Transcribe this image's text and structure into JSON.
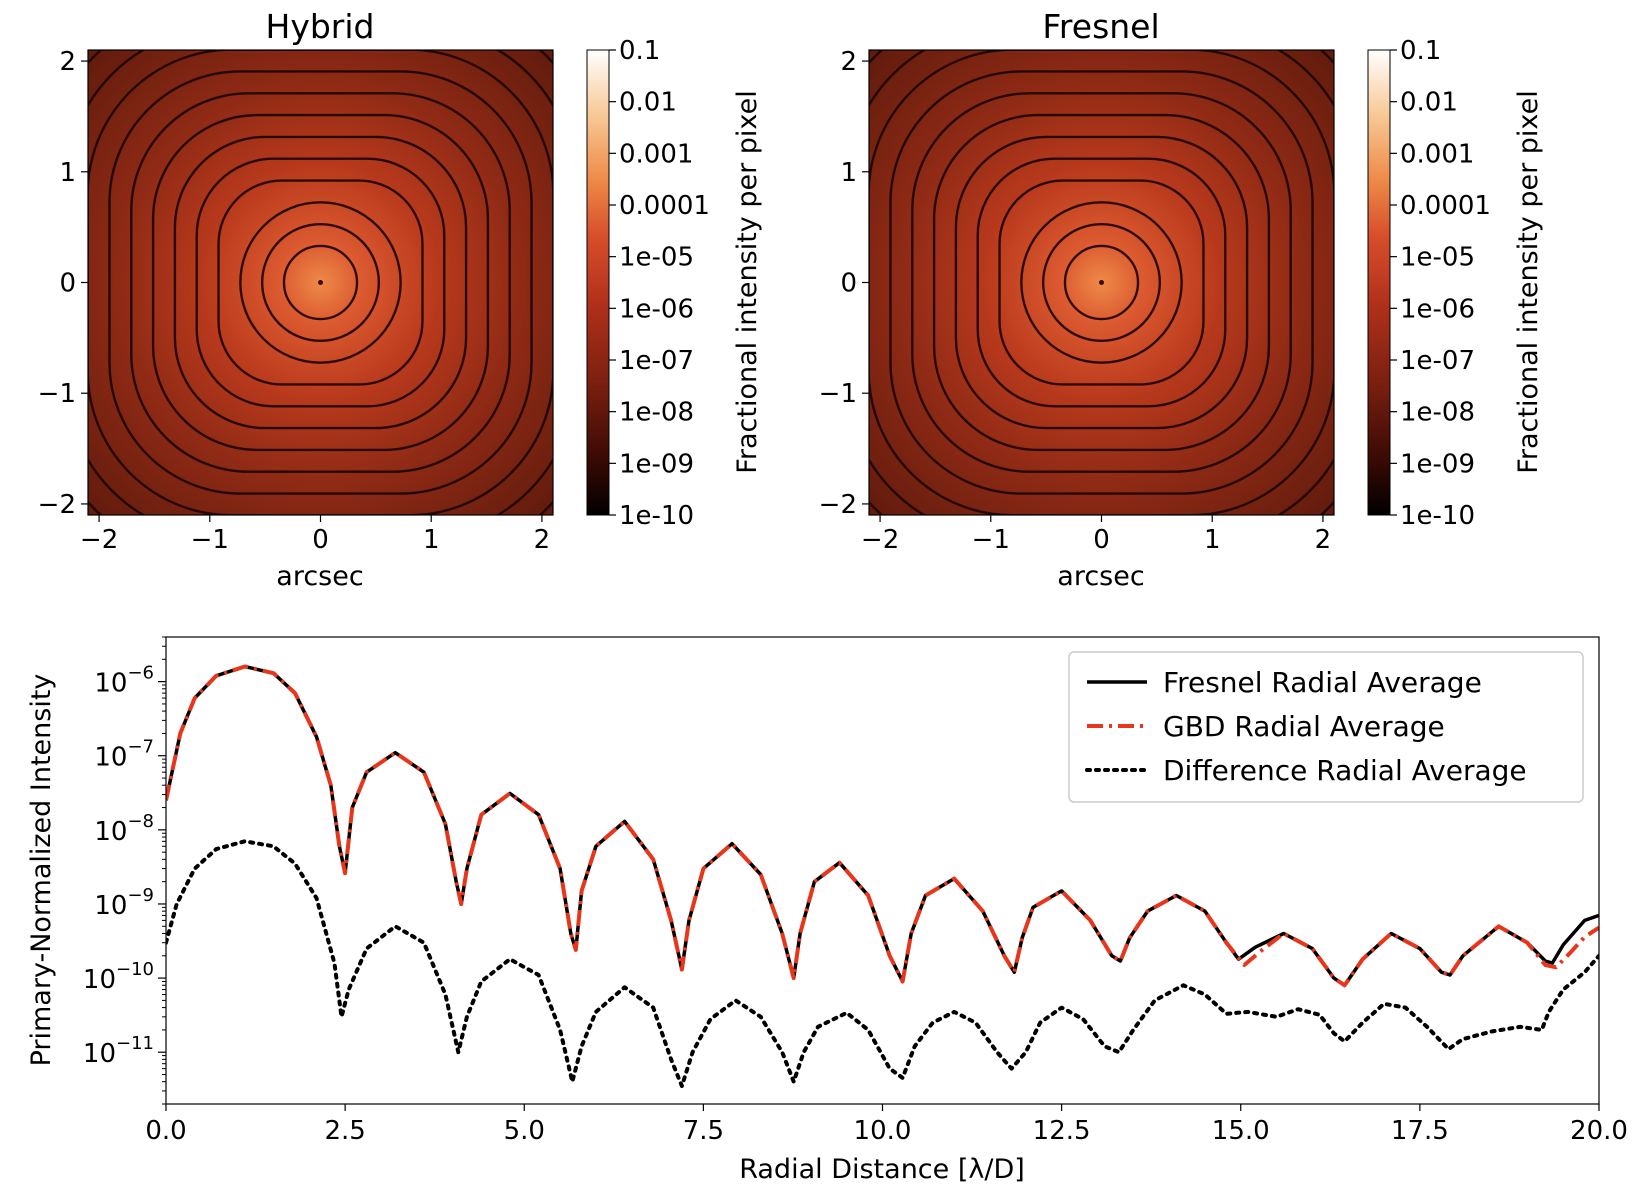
{
  "chart_data": [
    {
      "type": "heatmap",
      "title": "Hybrid",
      "xlabel": "arcsec",
      "ylabel": "",
      "xlim": [
        -2.1,
        2.1
      ],
      "ylim": [
        -2.1,
        2.1
      ],
      "xticks": [
        {
          "v": -2,
          "label": "−2"
        },
        {
          "v": -1,
          "label": "−1"
        },
        {
          "v": 0,
          "label": "0"
        },
        {
          "v": 1,
          "label": "1"
        },
        {
          "v": 2,
          "label": "2"
        }
      ],
      "yticks": [
        {
          "v": -2,
          "label": "−2"
        },
        {
          "v": -1,
          "label": "−1"
        },
        {
          "v": 0,
          "label": "0"
        },
        {
          "v": 1,
          "label": "1"
        },
        {
          "v": 2,
          "label": "2"
        }
      ],
      "colorbar": {
        "label": "Fractional intensity per pixel",
        "scale": "log",
        "range": [
          1e-10,
          0.1
        ],
        "ticks": [
          "0.1",
          "0.01",
          "0.001",
          "0.0001",
          "1e-05",
          "1e-06",
          "1e-07",
          "1e-08",
          "1e-09",
          "1e-10"
        ],
        "colors": [
          "#000000",
          "#3a0a04",
          "#7a1f10",
          "#b0301a",
          "#d84e2c",
          "#ee8a48",
          "#f8c896",
          "#ffffff"
        ]
      }
    },
    {
      "type": "heatmap",
      "title": "Fresnel",
      "xlabel": "arcsec",
      "ylabel": "",
      "xlim": [
        -2.1,
        2.1
      ],
      "ylim": [
        -2.1,
        2.1
      ],
      "xticks": [
        {
          "v": -2,
          "label": "−2"
        },
        {
          "v": -1,
          "label": "−1"
        },
        {
          "v": 0,
          "label": "0"
        },
        {
          "v": 1,
          "label": "1"
        },
        {
          "v": 2,
          "label": "2"
        }
      ],
      "yticks": [
        {
          "v": -2,
          "label": "−2"
        },
        {
          "v": -1,
          "label": "−1"
        },
        {
          "v": 0,
          "label": "0"
        },
        {
          "v": 1,
          "label": "1"
        },
        {
          "v": 2,
          "label": "2"
        }
      ],
      "colorbar": {
        "label": "Fractional intensity per pixel",
        "scale": "log",
        "range": [
          1e-10,
          0.1
        ],
        "ticks": [
          "0.1",
          "0.01",
          "0.001",
          "0.0001",
          "1e-05",
          "1e-06",
          "1e-07",
          "1e-08",
          "1e-09",
          "1e-10"
        ],
        "colors": [
          "#000000",
          "#3a0a04",
          "#7a1f10",
          "#b0301a",
          "#d84e2c",
          "#ee8a48",
          "#f8c896",
          "#ffffff"
        ]
      }
    },
    {
      "type": "line",
      "title": "",
      "xlabel": "Radial Distance [λ/D]",
      "ylabel": "Primary-Normalized Intensity",
      "xlim": [
        0,
        20
      ],
      "ylim": [
        2e-12,
        4e-06
      ],
      "yscale": "log",
      "grid": false,
      "legend_position": "top-right",
      "xticks": [
        {
          "v": 0,
          "label": "0.0"
        },
        {
          "v": 2.5,
          "label": "2.5"
        },
        {
          "v": 5,
          "label": "5.0"
        },
        {
          "v": 7.5,
          "label": "7.5"
        },
        {
          "v": 10,
          "label": "10.0"
        },
        {
          "v": 12.5,
          "label": "12.5"
        },
        {
          "v": 15,
          "label": "15.0"
        },
        {
          "v": 17.5,
          "label": "17.5"
        },
        {
          "v": 20,
          "label": "20.0"
        }
      ],
      "yticks": [
        {
          "v": 1e-06,
          "base": "10",
          "exp": "−6"
        },
        {
          "v": 1e-07,
          "base": "10",
          "exp": "−7"
        },
        {
          "v": 1e-08,
          "base": "10",
          "exp": "−8"
        },
        {
          "v": 1e-09,
          "base": "10",
          "exp": "−9"
        },
        {
          "v": 1e-10,
          "base": "10",
          "exp": "−10"
        },
        {
          "v": 1e-11,
          "base": "10",
          "exp": "−11"
        }
      ],
      "series": [
        {
          "name": "Fresnel Radial Average",
          "color": "#000000",
          "style": "solid",
          "x": [
            0.0,
            0.2,
            0.4,
            0.7,
            1.1,
            1.5,
            1.8,
            2.1,
            2.3,
            2.42,
            2.5,
            2.6,
            2.8,
            3.2,
            3.6,
            3.9,
            4.05,
            4.12,
            4.2,
            4.4,
            4.8,
            5.2,
            5.5,
            5.65,
            5.72,
            5.8,
            6.0,
            6.4,
            6.8,
            7.05,
            7.2,
            7.3,
            7.5,
            7.9,
            8.3,
            8.6,
            8.76,
            8.85,
            9.05,
            9.4,
            9.8,
            10.1,
            10.28,
            10.4,
            10.6,
            11.0,
            11.4,
            11.7,
            11.84,
            11.95,
            12.1,
            12.5,
            12.9,
            13.2,
            13.32,
            13.45,
            13.7,
            14.1,
            14.5,
            14.8,
            14.97,
            15.2,
            15.6,
            16.0,
            16.3,
            16.45,
            16.7,
            17.1,
            17.5,
            17.8,
            17.92,
            18.1,
            18.6,
            19.0,
            19.25,
            19.35,
            19.5,
            19.8,
            20.0
          ],
          "y": [
            2.5e-08,
            2e-07,
            6e-07,
            1.2e-06,
            1.6e-06,
            1.3e-06,
            7e-07,
            1.8e-07,
            4e-08,
            6e-09,
            2.6e-09,
            2e-08,
            6e-08,
            1.1e-07,
            6e-08,
            1.2e-08,
            2e-09,
            1e-09,
            3e-09,
            1.6e-08,
            3.1e-08,
            1.6e-08,
            3e-09,
            4e-10,
            2.4e-10,
            1.5e-09,
            6e-09,
            1.3e-08,
            4e-09,
            6e-10,
            1.3e-10,
            6e-10,
            3e-09,
            6.5e-09,
            2.5e-09,
            4e-10,
            1e-10,
            4e-10,
            2e-09,
            3.6e-09,
            1.3e-09,
            2e-10,
            9e-11,
            4e-10,
            1.3e-09,
            2.2e-09,
            8e-10,
            2e-10,
            1.2e-10,
            3.5e-10,
            9e-10,
            1.5e-09,
            6e-10,
            2e-10,
            1.7e-10,
            3.5e-10,
            8e-10,
            1.3e-09,
            8e-10,
            3e-10,
            1.8e-10,
            2.6e-10,
            4e-10,
            2.5e-10,
            1e-10,
            8e-11,
            1.8e-10,
            4e-10,
            2.5e-10,
            1.2e-10,
            1.1e-10,
            2e-10,
            5e-10,
            3e-10,
            1.7e-10,
            1.6e-10,
            2.8e-10,
            6e-10,
            7e-10
          ]
        },
        {
          "name": "GBD Radial Average",
          "color": "#e8361c",
          "style": "dashdot",
          "x": [
            0.0,
            0.2,
            0.4,
            0.7,
            1.1,
            1.5,
            1.8,
            2.1,
            2.3,
            2.42,
            2.5,
            2.6,
            2.8,
            3.2,
            3.6,
            3.9,
            4.05,
            4.12,
            4.2,
            4.4,
            4.8,
            5.2,
            5.5,
            5.65,
            5.72,
            5.8,
            6.0,
            6.4,
            6.8,
            7.05,
            7.2,
            7.3,
            7.5,
            7.9,
            8.3,
            8.6,
            8.76,
            8.85,
            9.05,
            9.4,
            9.8,
            10.1,
            10.28,
            10.4,
            10.6,
            11.0,
            11.4,
            11.7,
            11.84,
            11.95,
            12.1,
            12.5,
            12.9,
            13.2,
            13.32,
            13.45,
            13.7,
            14.1,
            14.5,
            14.8,
            15.05,
            15.3,
            15.6,
            16.0,
            16.3,
            16.45,
            16.7,
            17.1,
            17.5,
            17.8,
            17.92,
            18.1,
            18.6,
            19.0,
            19.25,
            19.4,
            19.6,
            19.8,
            20.0
          ],
          "y": [
            2.5e-08,
            2e-07,
            6e-07,
            1.2e-06,
            1.6e-06,
            1.3e-06,
            7e-07,
            1.8e-07,
            4e-08,
            6e-09,
            2.6e-09,
            2e-08,
            6e-08,
            1.1e-07,
            6e-08,
            1.2e-08,
            2e-09,
            1e-09,
            3e-09,
            1.6e-08,
            3.1e-08,
            1.6e-08,
            3e-09,
            4e-10,
            2.4e-10,
            1.5e-09,
            6e-09,
            1.3e-08,
            4e-09,
            6e-10,
            1.3e-10,
            6e-10,
            3e-09,
            6.5e-09,
            2.5e-09,
            4e-10,
            1e-10,
            4e-10,
            2e-09,
            3.6e-09,
            1.3e-09,
            2e-10,
            9e-11,
            4e-10,
            1.3e-09,
            2.2e-09,
            8e-10,
            2e-10,
            1.2e-10,
            3.5e-10,
            9e-10,
            1.5e-09,
            6e-10,
            2e-10,
            1.7e-10,
            3.5e-10,
            8e-10,
            1.3e-09,
            8e-10,
            3e-10,
            1.5e-10,
            2.4e-10,
            4e-10,
            2.5e-10,
            1e-10,
            8e-11,
            1.8e-10,
            4e-10,
            2.5e-10,
            1.2e-10,
            1.1e-10,
            2e-10,
            5e-10,
            3e-10,
            1.5e-10,
            1.4e-10,
            2.2e-10,
            3.6e-10,
            4.8e-10
          ]
        },
        {
          "name": "Difference Radial Average",
          "color": "#000000",
          "style": "dotted",
          "x": [
            0.0,
            0.15,
            0.4,
            0.7,
            1.1,
            1.5,
            1.8,
            2.1,
            2.35,
            2.45,
            2.55,
            2.8,
            3.2,
            3.6,
            3.9,
            4.08,
            4.2,
            4.4,
            4.8,
            5.2,
            5.5,
            5.67,
            5.8,
            6.0,
            6.4,
            6.8,
            7.05,
            7.2,
            7.35,
            7.6,
            7.95,
            8.3,
            8.6,
            8.76,
            8.9,
            9.1,
            9.5,
            9.8,
            10.1,
            10.28,
            10.45,
            10.7,
            11.0,
            11.3,
            11.6,
            11.8,
            12.0,
            12.2,
            12.5,
            12.8,
            13.1,
            13.3,
            13.5,
            13.8,
            14.2,
            14.5,
            14.8,
            15.1,
            15.5,
            15.8,
            16.1,
            16.3,
            16.45,
            16.7,
            17.0,
            17.3,
            17.6,
            17.9,
            18.1,
            18.5,
            18.9,
            19.2,
            19.3,
            19.5,
            19.8,
            20.0
          ],
          "y": [
            3e-10,
            1e-09,
            3e-09,
            5.5e-09,
            7e-09,
            6e-09,
            3.5e-09,
            1.2e-09,
            1.6e-10,
            3e-11,
            7e-11,
            2.5e-10,
            5e-10,
            3e-10,
            6e-11,
            1e-11,
            3e-11,
            9e-11,
            1.8e-10,
            1.1e-10,
            2e-11,
            4e-12,
            1.2e-11,
            3.5e-11,
            7.5e-11,
            4e-11,
            8e-12,
            3.5e-12,
            1e-11,
            2.8e-11,
            5e-11,
            3e-11,
            1e-11,
            4e-12,
            1e-11,
            2.2e-11,
            3.4e-11,
            2e-11,
            6e-12,
            4.5e-12,
            1.2e-11,
            2.5e-11,
            3.5e-11,
            2.5e-11,
            1e-11,
            6e-12,
            1e-11,
            2.5e-11,
            4e-11,
            2.8e-11,
            1.2e-11,
            1e-11,
            2e-11,
            5e-11,
            8e-11,
            6e-11,
            3.3e-11,
            3.5e-11,
            3e-11,
            3.8e-11,
            3.2e-11,
            1.8e-11,
            1.4e-11,
            2.5e-11,
            4.5e-11,
            4e-11,
            2.2e-11,
            1.1e-11,
            1.5e-11,
            1.9e-11,
            2.2e-11,
            2e-11,
            3.5e-11,
            7e-11,
            1.2e-10,
            2e-10
          ]
        }
      ]
    }
  ]
}
